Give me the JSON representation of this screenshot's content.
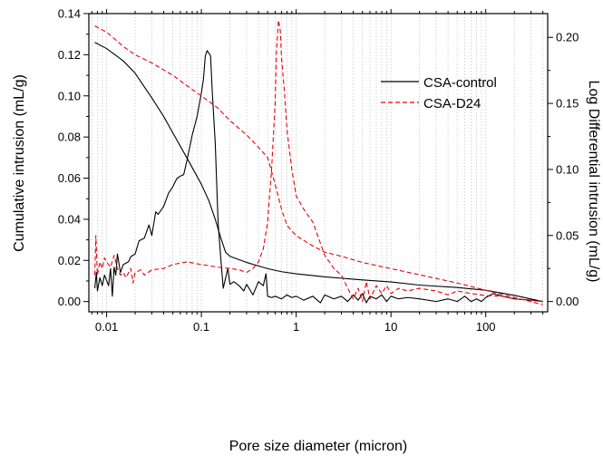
{
  "chart_data": {
    "type": "line",
    "title": "",
    "xlabel": "Pore size diameter (micron)",
    "ylabel_left": "Cumulative intrusion (mL/g)",
    "ylabel_right": "Log Differential intrusion (mL/g)",
    "x_scale": "log",
    "xlim": [
      0.0065,
      450
    ],
    "ylim_left": [
      -0.005,
      0.14
    ],
    "ylim_right": [
      -0.0078,
      0.218
    ],
    "x_ticks": [
      {
        "value": 0.01,
        "label": "0.01"
      },
      {
        "value": 0.1,
        "label": "0.1"
      },
      {
        "value": 1,
        "label": "1"
      },
      {
        "value": 10,
        "label": "10"
      },
      {
        "value": 100,
        "label": "100"
      }
    ],
    "y_left_ticks": [
      {
        "value": 0.0,
        "label": "0.00"
      },
      {
        "value": 0.02,
        "label": "0.02"
      },
      {
        "value": 0.04,
        "label": "0.04"
      },
      {
        "value": 0.06,
        "label": "0.06"
      },
      {
        "value": 0.08,
        "label": "0.08"
      },
      {
        "value": 0.1,
        "label": "0.10"
      },
      {
        "value": 0.12,
        "label": "0.12"
      },
      {
        "value": 0.14,
        "label": "0.14"
      }
    ],
    "y_right_ticks": [
      {
        "value": 0.0,
        "label": "0.00"
      },
      {
        "value": 0.05,
        "label": "0.05"
      },
      {
        "value": 0.1,
        "label": "0.10"
      },
      {
        "value": 0.15,
        "label": "0.15"
      },
      {
        "value": 0.2,
        "label": "0.20"
      }
    ],
    "grid": "log-x minor dotted vertical",
    "legend_position": "top-right",
    "legend": [
      {
        "label": "CSA-control",
        "color": "#000000",
        "dash": "solid"
      },
      {
        "label": "CSA-D24",
        "color": "#e8000b",
        "dash": "dashed"
      }
    ],
    "series": [
      {
        "name": "CSA-control",
        "kind": "cumulative",
        "axis": "left",
        "color": "#000000",
        "dash": "solid",
        "points": [
          [
            0.0075,
            0.126
          ],
          [
            0.01,
            0.123
          ],
          [
            0.015,
            0.117
          ],
          [
            0.02,
            0.111
          ],
          [
            0.03,
            0.099
          ],
          [
            0.04,
            0.09
          ],
          [
            0.05,
            0.082
          ],
          [
            0.07,
            0.07
          ],
          [
            0.1,
            0.057
          ],
          [
            0.12,
            0.049
          ],
          [
            0.14,
            0.04
          ],
          [
            0.16,
            0.031
          ],
          [
            0.18,
            0.024
          ],
          [
            0.2,
            0.022
          ],
          [
            0.3,
            0.019
          ],
          [
            0.5,
            0.016
          ],
          [
            0.7,
            0.0145
          ],
          [
            1,
            0.0135
          ],
          [
            2,
            0.012
          ],
          [
            5,
            0.0105
          ],
          [
            10,
            0.0095
          ],
          [
            20,
            0.008
          ],
          [
            50,
            0.0068
          ],
          [
            100,
            0.0055
          ],
          [
            200,
            0.003
          ],
          [
            400,
            0.0
          ]
        ]
      },
      {
        "name": "CSA-control",
        "kind": "log-differential",
        "axis": "right",
        "color": "#000000",
        "dash": "solid",
        "points": [
          [
            0.0075,
            0.01
          ],
          [
            0.0078,
            0.022
          ],
          [
            0.008,
            0.008
          ],
          [
            0.0085,
            0.018
          ],
          [
            0.009,
            0.012
          ],
          [
            0.0095,
            0.02
          ],
          [
            0.01,
            0.016
          ],
          [
            0.0105,
            0.012
          ],
          [
            0.011,
            0.025
          ],
          [
            0.0115,
            0.004
          ],
          [
            0.012,
            0.026
          ],
          [
            0.0125,
            0.02
          ],
          [
            0.013,
            0.036
          ],
          [
            0.014,
            0.022
          ],
          [
            0.015,
            0.028
          ],
          [
            0.017,
            0.03
          ],
          [
            0.018,
            0.034
          ],
          [
            0.02,
            0.036
          ],
          [
            0.022,
            0.046
          ],
          [
            0.025,
            0.048
          ],
          [
            0.028,
            0.058
          ],
          [
            0.03,
            0.05
          ],
          [
            0.033,
            0.068
          ],
          [
            0.035,
            0.066
          ],
          [
            0.04,
            0.072
          ],
          [
            0.045,
            0.082
          ],
          [
            0.05,
            0.087
          ],
          [
            0.055,
            0.093
          ],
          [
            0.06,
            0.095
          ],
          [
            0.065,
            0.096
          ],
          [
            0.07,
            0.106
          ],
          [
            0.08,
            0.126
          ],
          [
            0.09,
            0.14
          ],
          [
            0.1,
            0.158
          ],
          [
            0.105,
            0.168
          ],
          [
            0.11,
            0.186
          ],
          [
            0.115,
            0.19
          ],
          [
            0.12,
            0.188
          ],
          [
            0.125,
            0.186
          ],
          [
            0.13,
            0.16
          ],
          [
            0.14,
            0.12
          ],
          [
            0.15,
            0.06
          ],
          [
            0.16,
            0.033
          ],
          [
            0.17,
            0.01
          ],
          [
            0.19,
            0.025
          ],
          [
            0.2,
            0.013
          ],
          [
            0.22,
            0.015
          ],
          [
            0.25,
            0.012
          ],
          [
            0.28,
            0.008
          ],
          [
            0.3,
            0.013
          ],
          [
            0.35,
            0.005
          ],
          [
            0.4,
            0.015
          ],
          [
            0.45,
            0.012
          ],
          [
            0.48,
            0.021
          ],
          [
            0.5,
            0.004
          ],
          [
            0.55,
            0.003
          ],
          [
            0.6,
            0.004
          ],
          [
            0.7,
            0.002
          ],
          [
            0.8,
            0.005
          ],
          [
            0.9,
            0.003
          ],
          [
            1,
            0.004
          ],
          [
            1.2,
            0.001
          ],
          [
            1.5,
            0.004
          ],
          [
            1.8,
            -0.001
          ],
          [
            2,
            0.005
          ],
          [
            2.5,
            0.002
          ],
          [
            3,
            0.004
          ],
          [
            3.5,
            0.0
          ],
          [
            4,
            0.005
          ],
          [
            4.5,
            0.001
          ],
          [
            5,
            0.006
          ],
          [
            5.5,
            -0.001
          ],
          [
            6,
            0.004
          ],
          [
            7,
            0.002
          ],
          [
            8,
            0.005
          ],
          [
            9,
            0.0
          ],
          [
            10,
            0.004
          ],
          [
            12,
            0.002
          ],
          [
            15,
            0.003
          ],
          [
            20,
            0.002
          ],
          [
            30,
            0.0
          ],
          [
            40,
            0.002
          ],
          [
            50,
            0.0
          ],
          [
            60,
            0.004
          ],
          [
            70,
            0.0
          ],
          [
            80,
            0.002
          ],
          [
            90,
            0.0
          ],
          [
            100,
            0.003
          ],
          [
            120,
            0.006
          ],
          [
            150,
            0.004
          ],
          [
            200,
            0.002
          ],
          [
            300,
            0.001
          ],
          [
            400,
            0.0
          ]
        ]
      },
      {
        "name": "CSA-D24",
        "kind": "cumulative",
        "axis": "left",
        "color": "#e8000b",
        "dash": "dashed",
        "points": [
          [
            0.0075,
            0.134
          ],
          [
            0.01,
            0.131
          ],
          [
            0.015,
            0.124
          ],
          [
            0.02,
            0.12
          ],
          [
            0.03,
            0.116
          ],
          [
            0.05,
            0.11
          ],
          [
            0.07,
            0.105
          ],
          [
            0.1,
            0.1
          ],
          [
            0.15,
            0.094
          ],
          [
            0.2,
            0.088
          ],
          [
            0.3,
            0.081
          ],
          [
            0.4,
            0.075
          ],
          [
            0.5,
            0.07
          ],
          [
            0.6,
            0.057
          ],
          [
            0.7,
            0.045
          ],
          [
            0.8,
            0.037
          ],
          [
            1,
            0.032
          ],
          [
            1.5,
            0.027
          ],
          [
            2,
            0.024
          ],
          [
            3,
            0.022
          ],
          [
            5,
            0.019
          ],
          [
            10,
            0.016
          ],
          [
            20,
            0.013
          ],
          [
            50,
            0.009
          ],
          [
            100,
            0.0055
          ],
          [
            200,
            0.002
          ],
          [
            400,
            -0.0015
          ]
        ]
      },
      {
        "name": "CSA-D24",
        "kind": "log-differential",
        "axis": "right",
        "color": "#e8000b",
        "dash": "dashed",
        "points": [
          [
            0.0075,
            0.02
          ],
          [
            0.0077,
            0.05
          ],
          [
            0.008,
            0.02
          ],
          [
            0.0085,
            0.03
          ],
          [
            0.009,
            0.025
          ],
          [
            0.0095,
            0.033
          ],
          [
            0.01,
            0.03
          ],
          [
            0.011,
            0.026
          ],
          [
            0.012,
            0.035
          ],
          [
            0.013,
            0.025
          ],
          [
            0.014,
            0.02
          ],
          [
            0.015,
            0.022
          ],
          [
            0.016,
            0.018
          ],
          [
            0.018,
            0.025
          ],
          [
            0.019,
            0.014
          ],
          [
            0.02,
            0.022
          ],
          [
            0.023,
            0.024
          ],
          [
            0.025,
            0.02
          ],
          [
            0.03,
            0.024
          ],
          [
            0.04,
            0.025
          ],
          [
            0.05,
            0.028
          ],
          [
            0.07,
            0.03
          ],
          [
            0.1,
            0.028
          ],
          [
            0.15,
            0.026
          ],
          [
            0.2,
            0.025
          ],
          [
            0.25,
            0.024
          ],
          [
            0.3,
            0.022
          ],
          [
            0.35,
            0.025
          ],
          [
            0.4,
            0.03
          ],
          [
            0.45,
            0.04
          ],
          [
            0.5,
            0.06
          ],
          [
            0.55,
            0.1
          ],
          [
            0.6,
            0.15
          ],
          [
            0.62,
            0.19
          ],
          [
            0.65,
            0.213
          ],
          [
            0.68,
            0.205
          ],
          [
            0.7,
            0.185
          ],
          [
            0.75,
            0.16
          ],
          [
            0.8,
            0.13
          ],
          [
            0.9,
            0.1
          ],
          [
            1,
            0.08
          ],
          [
            1.2,
            0.07
          ],
          [
            1.5,
            0.06
          ],
          [
            2,
            0.035
          ],
          [
            2.5,
            0.025
          ],
          [
            3,
            0.02
          ],
          [
            3.5,
            0.01
          ],
          [
            4,
            0.002
          ],
          [
            4.5,
            0.01
          ],
          [
            5,
            0.0
          ],
          [
            5.5,
            0.015
          ],
          [
            6,
            0.002
          ],
          [
            7,
            0.012
          ],
          [
            8,
            0.006
          ],
          [
            9,
            0.012
          ],
          [
            10,
            0.006
          ],
          [
            12,
            0.01
          ],
          [
            15,
            0.008
          ],
          [
            20,
            0.01
          ],
          [
            30,
            0.008
          ],
          [
            40,
            0.005
          ],
          [
            50,
            0.008
          ],
          [
            70,
            0.006
          ],
          [
            100,
            0.0045
          ],
          [
            150,
            0.004
          ],
          [
            200,
            0.002
          ],
          [
            300,
            0.001
          ],
          [
            400,
            0.0
          ]
        ]
      }
    ]
  }
}
